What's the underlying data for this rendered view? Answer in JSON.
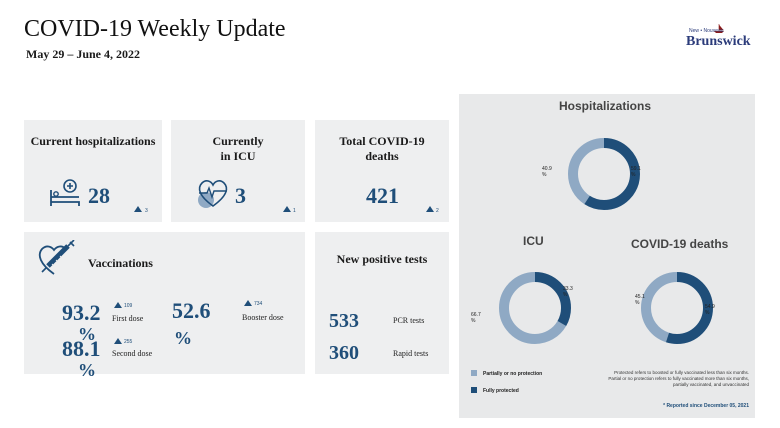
{
  "header": {
    "title": "COVID-19 Weekly Update",
    "date_range": "May 29 – June 4, 2022"
  },
  "logo": {
    "small": "New • Nouveau",
    "big": "Brunswick"
  },
  "cards": {
    "hospitalizations": {
      "title": "Current hospitalizations",
      "value": "28",
      "delta": "3",
      "icon": "hospital-bed-icon"
    },
    "icu": {
      "title_line1": "Currently",
      "title_line2": "in ICU",
      "value": "3",
      "delta": "1",
      "icon": "heart-monitor-icon"
    },
    "deaths": {
      "title_line1": "Total COVID-19",
      "title_line2": "deaths",
      "value": "421",
      "delta": "2"
    },
    "vaccinations": {
      "title": "Vaccinations",
      "icon": "syringe-heart-icon",
      "first_dose": {
        "value_line1": "93.2",
        "value_line2": "%",
        "label": "First dose",
        "delta": "109"
      },
      "second_dose": {
        "value_line1": "88.1",
        "value_line2": "%",
        "label": "Second dose",
        "delta": "255"
      },
      "booster": {
        "value_line1": "52.6",
        "value_line2": "%",
        "label": "Booster dose",
        "delta": "734"
      }
    },
    "tests": {
      "title": "New positive tests",
      "pcr": {
        "value": "533",
        "label": "PCR tests"
      },
      "rapid": {
        "value": "360",
        "label": "Rapid tests"
      }
    }
  },
  "right_panel": {
    "hospitalizations": {
      "title": "Hospitalizations",
      "partial_pct": 40.9,
      "full_pct": 59.1,
      "partial_label": "40.9 %",
      "full_label": "59.1 %"
    },
    "icu": {
      "title": "ICU",
      "partial_pct": 66.7,
      "full_pct": 33.3,
      "partial_label": "66.7 %",
      "full_label": "33.3 %"
    },
    "deaths": {
      "title": "COVID-19 deaths",
      "partial_pct": 45.1,
      "full_pct": 54.9,
      "partial_label": "45.1 %",
      "full_label": "54.9 %"
    },
    "legend": {
      "partial": "Partially or no protection",
      "full": "Fully protected"
    },
    "note_line1": "Protected refers to boosted or fully vaccinated less than six months.",
    "note_line2": "Partial or no protection refers to fully vaccinated more than six months,",
    "note_line3": "partially vaccinated, and unvaccinated",
    "footnote": "* Reported since December 05, 2021",
    "colors": {
      "partial": "#8fa9c4",
      "full": "#1f4e79"
    }
  }
}
